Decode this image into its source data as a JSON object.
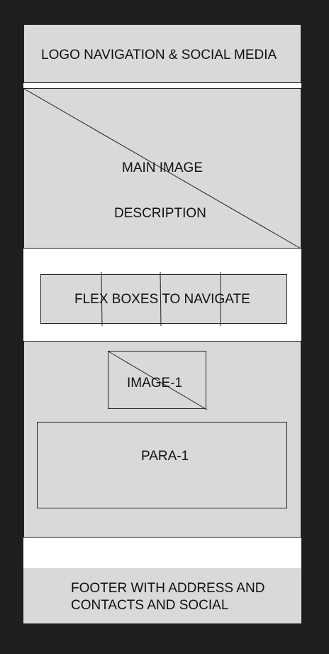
{
  "header": {
    "text": "LOGO NAVIGATION & SOCIAL MEDIA"
  },
  "hero": {
    "title": "MAIN IMAGE",
    "description": "DESCRIPTION"
  },
  "flex_nav": {
    "text": "FLEX BOXES TO NAVIGATE"
  },
  "content": {
    "image_label": "IMAGE-1",
    "para_label": "PARA-1"
  },
  "footer": {
    "line1": "FOOTER WITH ADDRESS AND",
    "line2": "CONTACTS AND SOCIAL"
  },
  "colors": {
    "background": "#1e1e1e",
    "block": "#d9d9d9",
    "frame": "#ffffff",
    "stroke": "#222222"
  }
}
